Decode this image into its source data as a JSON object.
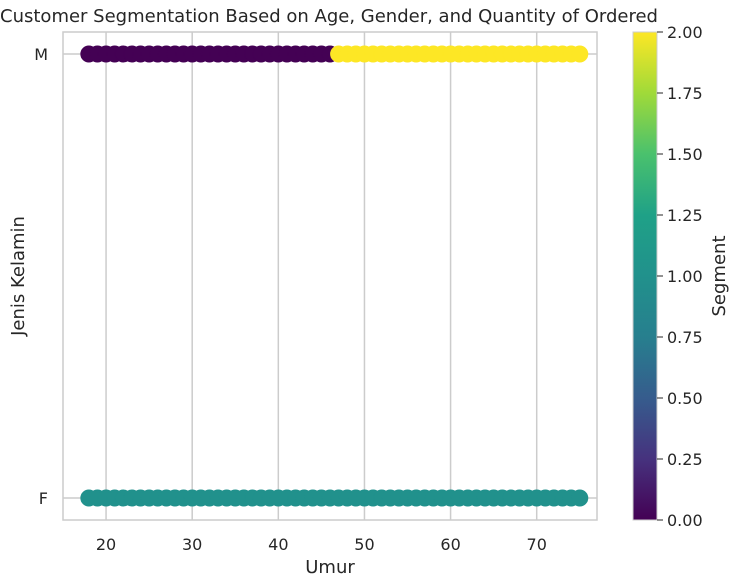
{
  "chart_data": {
    "type": "scatter",
    "title": "Customer Segmentation Based on Age, Gender, and Quantity of Ordered",
    "xlabel": "Umur",
    "ylabel": "Jenis Kelamin",
    "xlim": [
      15,
      77
    ],
    "x_ticks": [
      20,
      30,
      40,
      50,
      60,
      70
    ],
    "y_categories": [
      "F",
      "M"
    ],
    "grid": true,
    "colorbar": {
      "label": "Segment",
      "range": [
        0,
        2
      ],
      "colormap": "viridis",
      "ticks": [
        "0.00",
        "0.25",
        "0.50",
        "0.75",
        "1.00",
        "1.25",
        "1.50",
        "1.75",
        "2.00"
      ]
    },
    "series": [
      {
        "category": "M",
        "segment": 0,
        "color": "#440154",
        "x_range": [
          18,
          46
        ]
      },
      {
        "category": "M",
        "segment": 2,
        "color": "#fde725",
        "x_range": [
          47,
          75
        ]
      },
      {
        "category": "F",
        "segment": 1,
        "color": "#21918c",
        "x_range": [
          18,
          75
        ]
      }
    ]
  }
}
